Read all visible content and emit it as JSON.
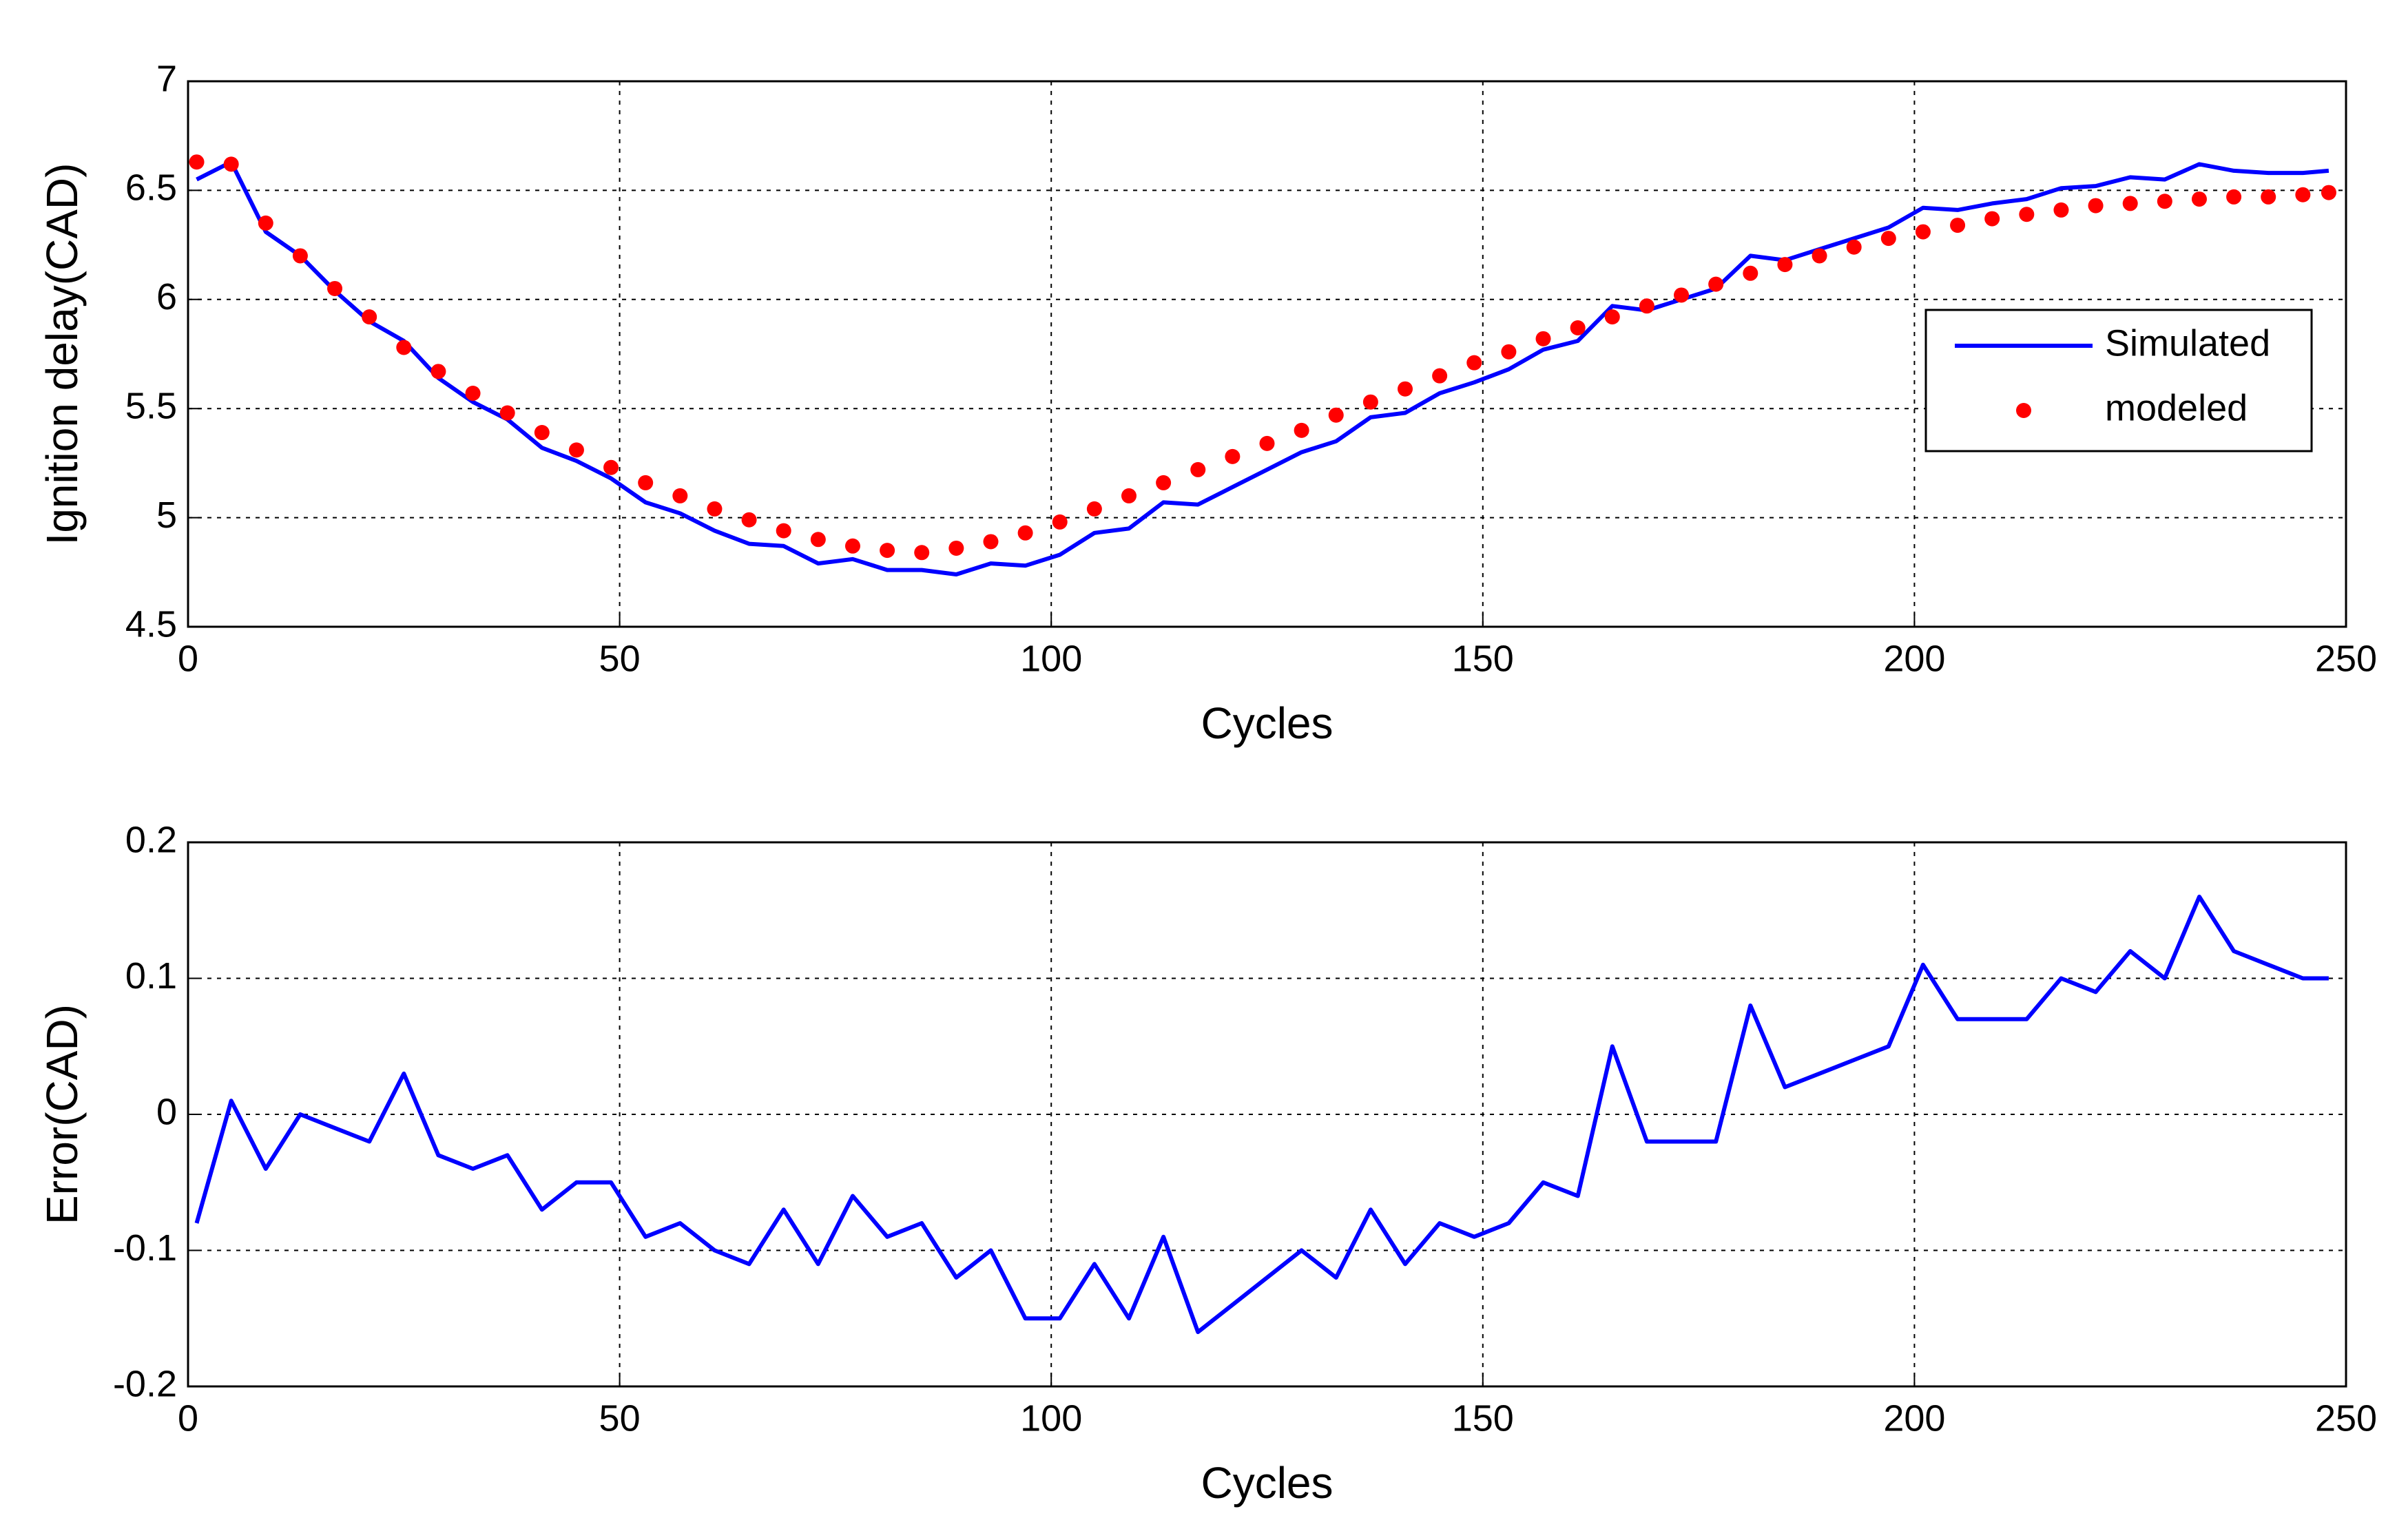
{
  "chart_data": [
    {
      "type": "line",
      "xlabel": "Cycles",
      "ylabel": "Ignition delay(CAD)",
      "x": [
        1,
        5,
        9,
        13,
        17,
        21,
        25,
        29,
        33,
        37,
        41,
        45,
        49,
        53,
        57,
        61,
        65,
        69,
        73,
        77,
        81,
        85,
        89,
        93,
        97,
        101,
        105,
        109,
        113,
        117,
        121,
        125,
        129,
        133,
        137,
        141,
        145,
        149,
        153,
        157,
        161,
        165,
        169,
        173,
        177,
        181,
        185,
        189,
        193,
        197,
        201,
        205,
        209,
        213,
        217,
        221,
        225,
        229,
        233,
        237,
        241,
        245,
        248
      ],
      "series": [
        {
          "name": "Simulated",
          "color": "#0000ff",
          "mode": "line",
          "values": [
            6.55,
            6.63,
            6.31,
            6.2,
            6.04,
            5.9,
            5.81,
            5.64,
            5.53,
            5.45,
            5.32,
            5.26,
            5.18,
            5.07,
            5.02,
            4.94,
            4.88,
            4.87,
            4.79,
            4.81,
            4.76,
            4.76,
            4.74,
            4.79,
            4.78,
            4.83,
            4.93,
            4.95,
            5.07,
            5.06,
            5.14,
            5.22,
            5.3,
            5.35,
            5.46,
            5.48,
            5.57,
            5.62,
            5.68,
            5.77,
            5.81,
            5.97,
            5.95,
            6.0,
            6.05,
            6.2,
            6.18,
            6.23,
            6.28,
            6.33,
            6.42,
            6.41,
            6.44,
            6.46,
            6.51,
            6.52,
            6.56,
            6.55,
            6.62,
            6.59,
            6.58,
            6.58,
            6.59
          ]
        },
        {
          "name": "modeled",
          "color": "#ff0000",
          "mode": "markers",
          "values": [
            6.63,
            6.62,
            6.35,
            6.2,
            6.05,
            5.92,
            5.78,
            5.67,
            5.57,
            5.48,
            5.39,
            5.31,
            5.23,
            5.16,
            5.1,
            5.04,
            4.99,
            4.94,
            4.9,
            4.87,
            4.85,
            4.84,
            4.86,
            4.89,
            4.93,
            4.98,
            5.04,
            5.1,
            5.16,
            5.22,
            5.28,
            5.34,
            5.4,
            5.47,
            5.53,
            5.59,
            5.65,
            5.71,
            5.76,
            5.82,
            5.87,
            5.92,
            5.97,
            6.02,
            6.07,
            6.12,
            6.16,
            6.2,
            6.24,
            6.28,
            6.31,
            6.34,
            6.37,
            6.39,
            6.41,
            6.43,
            6.44,
            6.45,
            6.46,
            6.47,
            6.47,
            6.48,
            6.49
          ]
        }
      ],
      "xlim": [
        0,
        250
      ],
      "xticks": [
        0,
        50,
        100,
        150,
        200,
        250
      ],
      "ylim": [
        4.5,
        7
      ],
      "yticks": [
        4.5,
        5,
        5.5,
        6,
        6.5,
        7
      ],
      "grid": true,
      "legend": "right"
    },
    {
      "type": "line",
      "xlabel": "Cycles",
      "ylabel": "Error(CAD)",
      "x": [
        1,
        5,
        9,
        13,
        17,
        21,
        25,
        29,
        33,
        37,
        41,
        45,
        49,
        53,
        57,
        61,
        65,
        69,
        73,
        77,
        81,
        85,
        89,
        93,
        97,
        101,
        105,
        109,
        113,
        117,
        121,
        125,
        129,
        133,
        137,
        141,
        145,
        149,
        153,
        157,
        161,
        165,
        169,
        173,
        177,
        181,
        185,
        189,
        193,
        197,
        201,
        205,
        209,
        213,
        217,
        221,
        225,
        229,
        233,
        237,
        241,
        245,
        248
      ],
      "series": [
        {
          "color": "#0000ff",
          "mode": "line",
          "values": [
            -0.08,
            0.01,
            -0.04,
            0.0,
            -0.01,
            -0.02,
            0.03,
            -0.03,
            -0.04,
            -0.03,
            -0.07,
            -0.05,
            -0.05,
            -0.09,
            -0.08,
            -0.1,
            -0.11,
            -0.07,
            -0.11,
            -0.06,
            -0.09,
            -0.08,
            -0.12,
            -0.1,
            -0.15,
            -0.15,
            -0.11,
            -0.15,
            -0.09,
            -0.16,
            -0.14,
            -0.12,
            -0.1,
            -0.12,
            -0.07,
            -0.11,
            -0.08,
            -0.09,
            -0.08,
            -0.05,
            -0.06,
            0.05,
            -0.02,
            -0.02,
            -0.02,
            0.08,
            0.02,
            0.03,
            0.04,
            0.05,
            0.11,
            0.07,
            0.07,
            0.07,
            0.1,
            0.09,
            0.12,
            0.1,
            0.16,
            0.12,
            0.11,
            0.1,
            0.1
          ]
        }
      ],
      "xlim": [
        0,
        250
      ],
      "xticks": [
        0,
        50,
        100,
        150,
        200,
        250
      ],
      "ylim": [
        -0.2,
        0.2
      ],
      "yticks": [
        -0.2,
        -0.1,
        0,
        0.1,
        0.2
      ],
      "grid": true
    }
  ]
}
